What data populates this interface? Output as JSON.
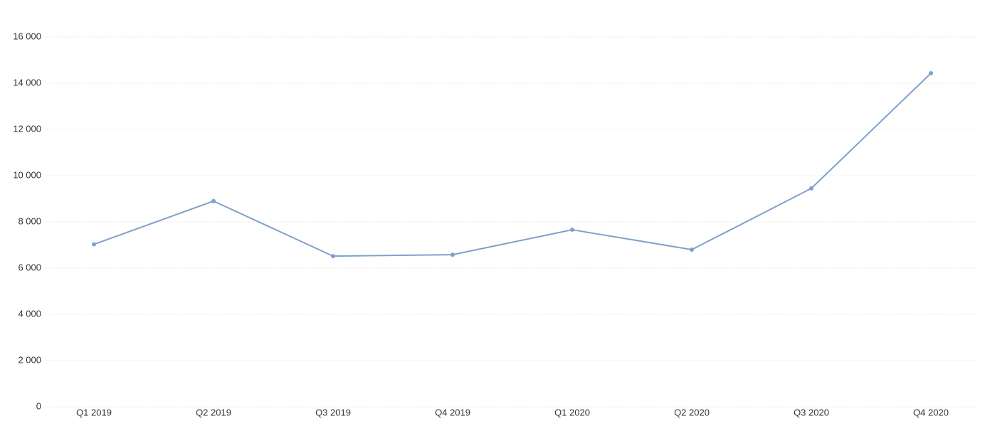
{
  "chart_data": {
    "type": "line",
    "categories": [
      "Q1 2019",
      "Q2 2019",
      "Q3 2019",
      "Q4 2019",
      "Q1 2020",
      "Q2 2020",
      "Q3 2020",
      "Q4 2020"
    ],
    "series": [
      {
        "color": "#7fa1c9",
        "values": [
          7030,
          8900,
          6520,
          6580,
          7660,
          6800,
          9450,
          14430
        ]
      }
    ],
    "ylim": [
      0,
      16000
    ],
    "yticks": [
      0,
      {
        "value": 2000,
        "label": "2 000"
      },
      {
        "value": 4000,
        "label": "4 000"
      },
      {
        "value": 6000,
        "label": "6 000"
      },
      {
        "value": 8000,
        "label": "8 000"
      },
      {
        "value": 10000,
        "label": "10 000"
      },
      {
        "value": 12000,
        "label": "12 000"
      },
      {
        "value": 14000,
        "label": "14 000"
      },
      {
        "value": 16000,
        "label": "16 000"
      }
    ],
    "grid": true
  }
}
